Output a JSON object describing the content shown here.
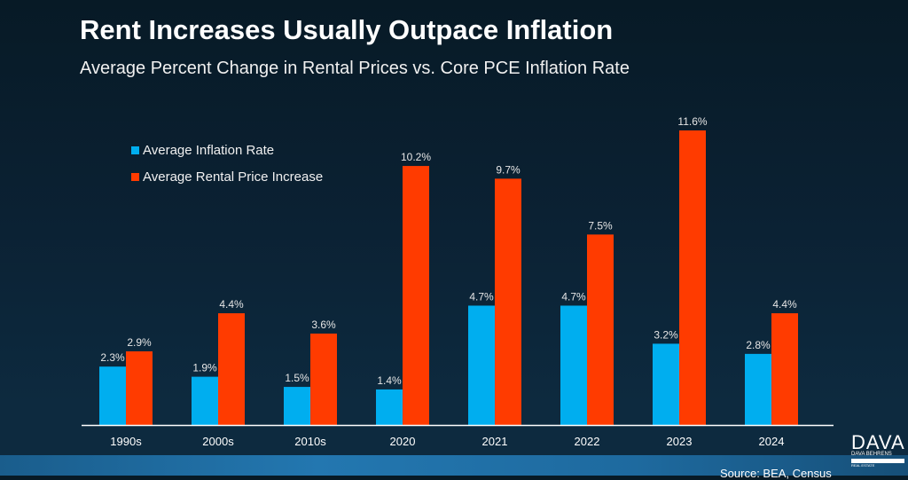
{
  "header": {
    "title": "Rent Increases Usually Outpace Inflation",
    "subtitle": "Average Percent Change in Rental Prices vs. Core PCE Inflation Rate"
  },
  "footer": {
    "source": "Source: BEA, Census",
    "logo": {
      "main": "DAVA",
      "sub": "DAVA BEHRENS",
      "role": "BROKER",
      "tagline": "REAL ESTATE"
    }
  },
  "colors": {
    "inflation": "#00aeef",
    "rent": "#ff3b00",
    "label": "#e6e6e6",
    "axis": "#ffffff"
  },
  "chart_data": {
    "type": "bar",
    "title": "Rent Increases Usually Outpace Inflation",
    "subtitle": "Average Percent Change in Rental Prices vs. Core PCE Inflation Rate",
    "xlabel": "",
    "ylabel": "",
    "categories": [
      "1990s",
      "2000s",
      "2010s",
      "2020",
      "2021",
      "2022",
      "2023",
      "2024"
    ],
    "series": [
      {
        "name": "Average Inflation Rate",
        "values": [
          2.3,
          1.9,
          1.5,
          1.4,
          4.7,
          4.7,
          3.2,
          2.8
        ],
        "labels": [
          "2.3%",
          "1.9%",
          "1.5%",
          "1.4%",
          "4.7%",
          "4.7%",
          "3.2%",
          "2.8%"
        ]
      },
      {
        "name": "Average Rental Price Increase",
        "values": [
          2.9,
          4.4,
          3.6,
          10.2,
          9.7,
          7.5,
          11.6,
          4.4
        ],
        "labels": [
          "2.9%",
          "4.4%",
          "3.6%",
          "10.2%",
          "9.7%",
          "7.5%",
          "11.6%",
          "4.4%"
        ]
      }
    ],
    "ylim": [
      0,
      11.6
    ],
    "grid": false,
    "y_axis_visible": false,
    "legend_position": "top-left",
    "data_labels": true
  }
}
